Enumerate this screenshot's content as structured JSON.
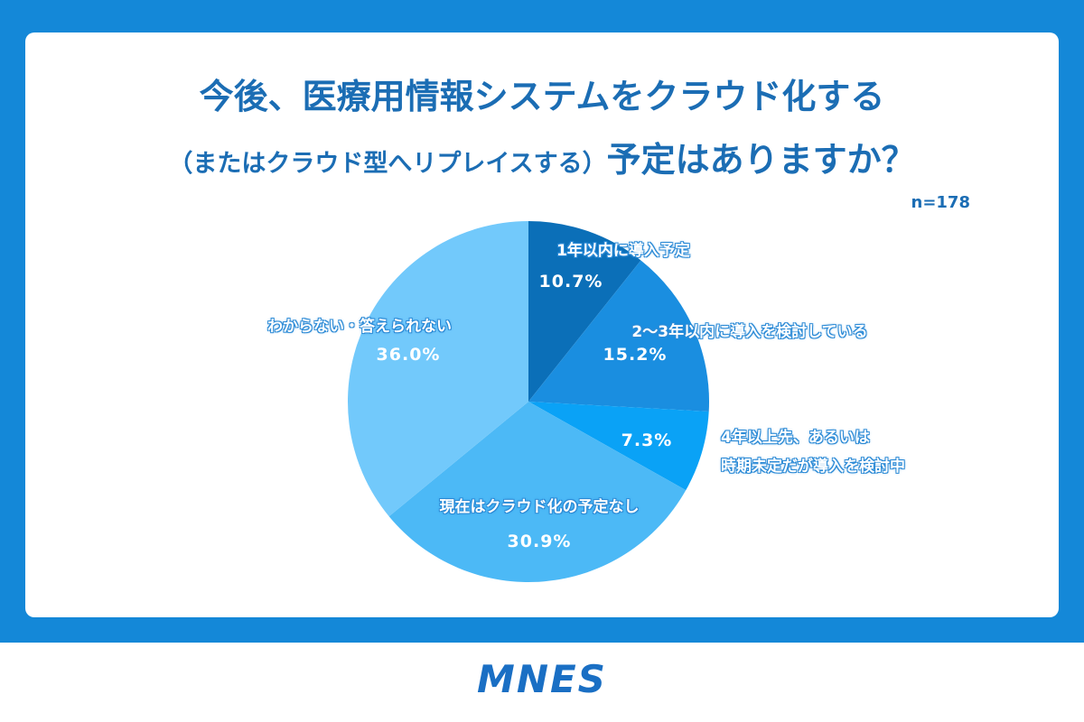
{
  "chart_data": {
    "type": "pie",
    "title": [
      "今後、医療用情報システムをクラウド化する",
      "（またはクラウド型へリプレイスする）",
      "予定はありますか？"
    ],
    "annotation": "n=178",
    "categories": [
      "1年以内に導入予定",
      "2〜3年以内に導入を検討している",
      "4年以上先、あるいは\n時期未定だが導入を検討中",
      "現在はクラウド化の予定なし",
      "わからない・答えられない"
    ],
    "values": [
      10.7,
      15.2,
      7.3,
      30.9,
      36.0
    ],
    "value_labels": [
      "10.7%",
      "15.2%",
      "7.3%",
      "30.9%",
      "36.0%"
    ],
    "colors": [
      "#0b6fb8",
      "#1a8ee0",
      "#0aa2f6",
      "#4cb9f6",
      "#72c9fb"
    ]
  },
  "footer": {
    "logo": "MNES"
  }
}
